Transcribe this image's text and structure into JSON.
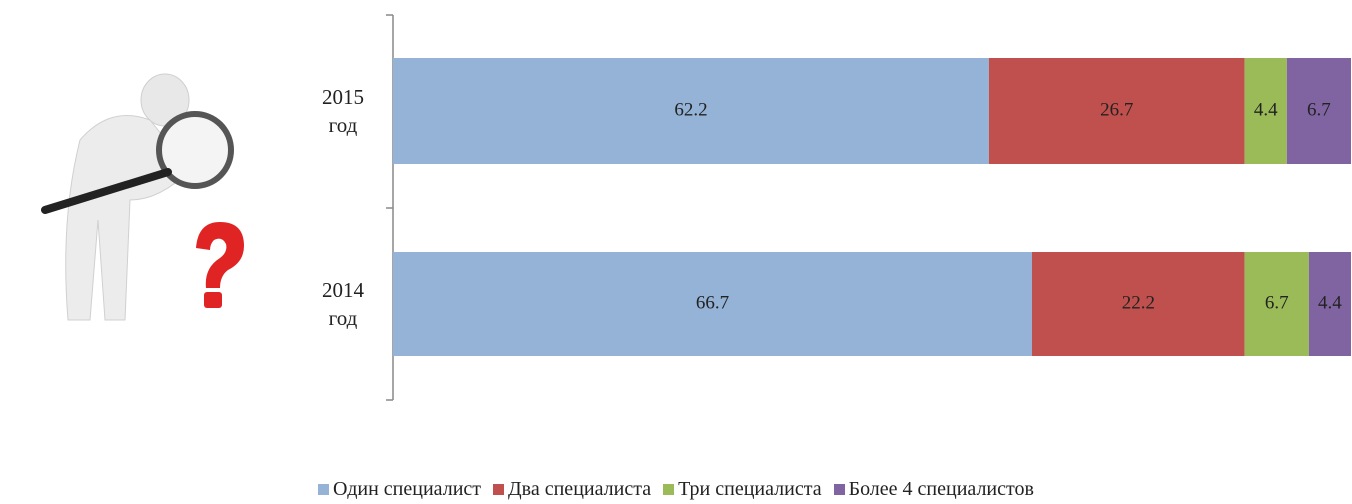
{
  "chart_data": {
    "type": "stacked-barh",
    "categories": [
      "2015 год",
      "2014 год"
    ],
    "xlim": [
      0,
      100
    ],
    "series": [
      {
        "name": "Один специалист",
        "color": "#95b3d7",
        "values": [
          62.2,
          66.7
        ]
      },
      {
        "name": "Два специалиста",
        "color": "#c0504d",
        "values": [
          26.7,
          22.2
        ]
      },
      {
        "name": "Три специалиста",
        "color": "#9bbb59",
        "values": [
          4.4,
          6.7
        ]
      },
      {
        "name": "Более 4 специалистов",
        "color": "#8064a2",
        "values": [
          6.7,
          4.4
        ]
      }
    ]
  }
}
